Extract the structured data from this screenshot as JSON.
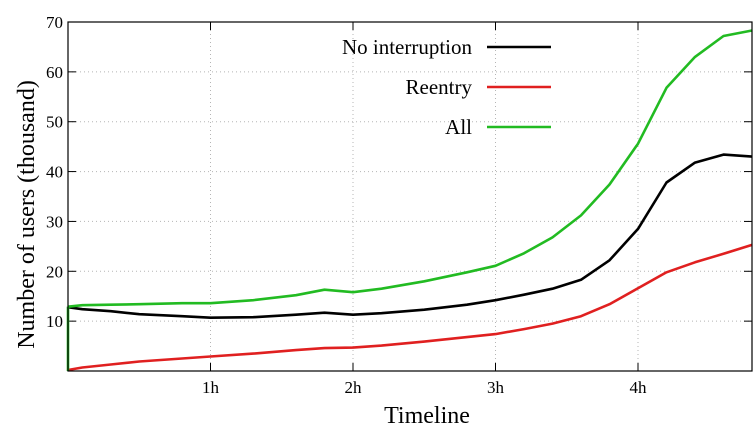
{
  "chart_data": {
    "type": "line",
    "xlabel": "Timeline",
    "ylabel": "Number of users (thousand)",
    "xlim": [
      0,
      4.8
    ],
    "ylim": [
      0,
      70
    ],
    "grid": true,
    "legend_position": "top-center",
    "x_ticks": [
      {
        "value": 1,
        "label": "1h"
      },
      {
        "value": 2,
        "label": "2h"
      },
      {
        "value": 3,
        "label": "3h"
      },
      {
        "value": 4,
        "label": "4h"
      }
    ],
    "y_ticks": [
      {
        "value": 10,
        "label": "10"
      },
      {
        "value": 20,
        "label": "20"
      },
      {
        "value": 30,
        "label": "30"
      },
      {
        "value": 40,
        "label": "40"
      },
      {
        "value": 50,
        "label": "50"
      },
      {
        "value": 60,
        "label": "60"
      },
      {
        "value": 70,
        "label": "70"
      }
    ],
    "series": [
      {
        "name": "No interruption",
        "color": "#000000",
        "x": [
          0,
          0.1,
          0.3,
          0.5,
          0.8,
          1.0,
          1.3,
          1.6,
          1.8,
          2.0,
          2.2,
          2.5,
          2.8,
          3.0,
          3.2,
          3.4,
          3.6,
          3.8,
          4.0,
          4.2,
          4.4,
          4.6,
          4.8
        ],
        "y": [
          12.8,
          12.4,
          12.0,
          11.4,
          11.0,
          10.7,
          10.8,
          11.3,
          11.7,
          11.3,
          11.6,
          12.3,
          13.3,
          14.2,
          15.3,
          16.5,
          18.3,
          22.2,
          28.5,
          37.8,
          41.8,
          43.4,
          43.0
        ]
      },
      {
        "name": "Reentry",
        "color": "#e02020",
        "x": [
          0,
          0.1,
          0.3,
          0.5,
          0.8,
          1.0,
          1.3,
          1.6,
          1.8,
          2.0,
          2.2,
          2.5,
          2.8,
          3.0,
          3.2,
          3.4,
          3.6,
          3.8,
          4.0,
          4.2,
          4.4,
          4.6,
          4.8
        ],
        "y": [
          0.2,
          0.7,
          1.3,
          1.9,
          2.5,
          2.9,
          3.5,
          4.2,
          4.6,
          4.7,
          5.1,
          5.9,
          6.8,
          7.4,
          8.4,
          9.5,
          11.0,
          13.4,
          16.6,
          19.8,
          21.8,
          23.5,
          25.3
        ]
      },
      {
        "name": "All",
        "color": "#22bb22",
        "x": [
          0,
          0.1,
          0.3,
          0.5,
          0.8,
          1.0,
          1.3,
          1.6,
          1.8,
          2.0,
          2.2,
          2.5,
          2.8,
          3.0,
          3.2,
          3.4,
          3.6,
          3.8,
          4.0,
          4.2,
          4.4,
          4.6,
          4.8
        ],
        "y": [
          12.9,
          13.2,
          13.3,
          13.4,
          13.6,
          13.6,
          14.2,
          15.2,
          16.3,
          15.8,
          16.5,
          18.0,
          19.8,
          21.1,
          23.6,
          26.8,
          31.2,
          37.4,
          45.6,
          56.8,
          63.0,
          67.2,
          68.3
        ]
      }
    ]
  }
}
